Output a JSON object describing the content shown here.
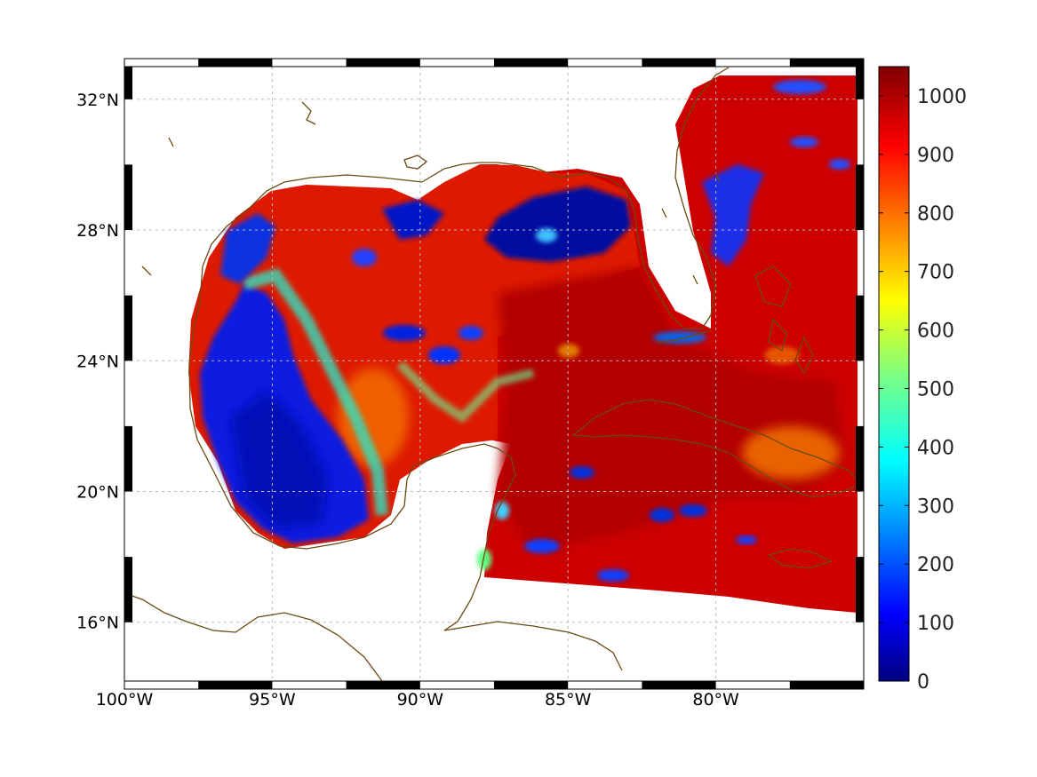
{
  "map": {
    "region": "Gulf of Mexico and Caribbean",
    "lon_range": [
      -100,
      -75
    ],
    "lat_range": [
      14.2,
      33
    ],
    "grid": true,
    "frame": "black-white checkered",
    "coastline_color": "#6b4a12",
    "longitude_ticks": [
      {
        "value": -100,
        "label": "100°W"
      },
      {
        "value": -95,
        "label": "95°W"
      },
      {
        "value": -90,
        "label": "90°W"
      },
      {
        "value": -85,
        "label": "85°W"
      },
      {
        "value": -80,
        "label": "80°W"
      }
    ],
    "latitude_ticks": [
      {
        "value": 32,
        "label": "32°N"
      },
      {
        "value": 28,
        "label": "28°N"
      },
      {
        "value": 24,
        "label": "24°N"
      },
      {
        "value": 20,
        "label": "20°N"
      },
      {
        "value": 16,
        "label": "16°N"
      }
    ]
  },
  "colorbar": {
    "colormap": "jet",
    "range": [
      0,
      1050
    ],
    "ticks": [
      {
        "value": 1000,
        "label": "1000"
      },
      {
        "value": 900,
        "label": "900"
      },
      {
        "value": 800,
        "label": "800"
      },
      {
        "value": 700,
        "label": "700"
      },
      {
        "value": 600,
        "label": "600"
      },
      {
        "value": 500,
        "label": "500"
      },
      {
        "value": 400,
        "label": "400"
      },
      {
        "value": 300,
        "label": "300"
      },
      {
        "value": 200,
        "label": "200"
      },
      {
        "value": 100,
        "label": "100"
      },
      {
        "value": 0,
        "label": "0"
      }
    ]
  }
}
